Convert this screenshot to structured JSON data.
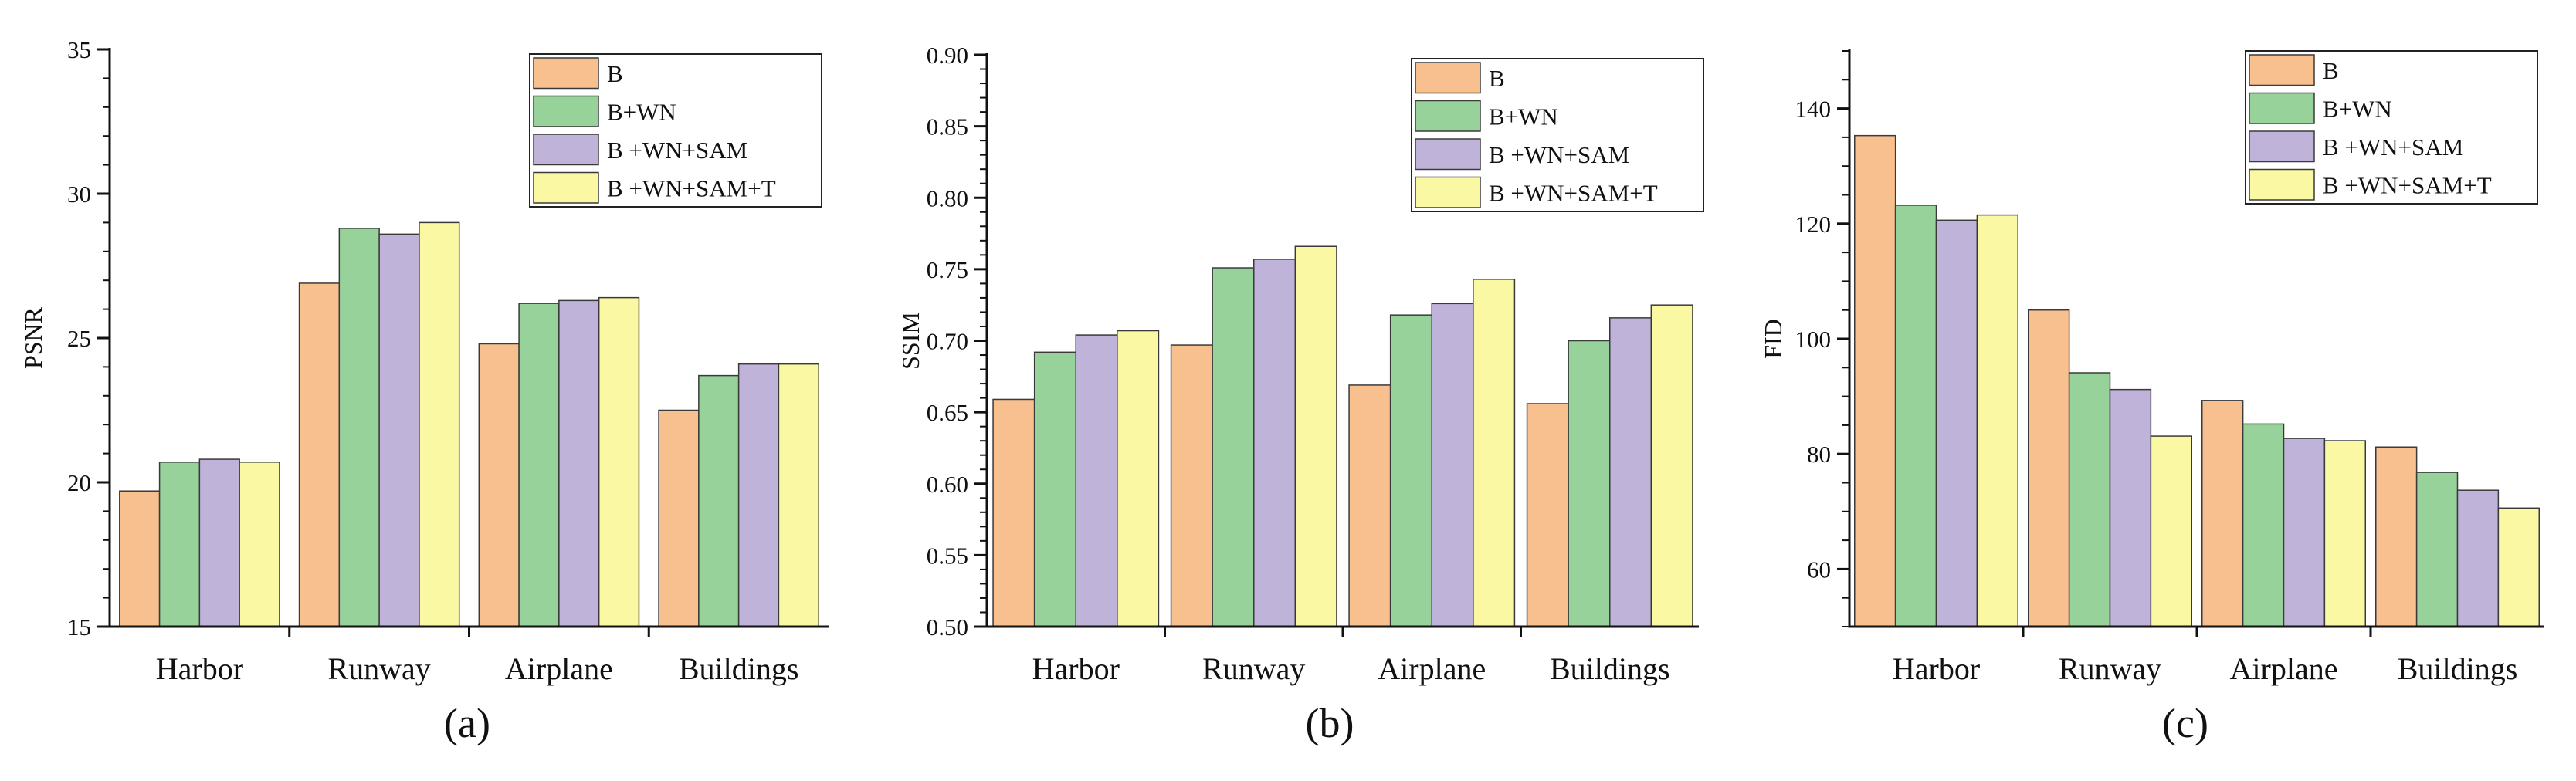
{
  "chart_data": [
    {
      "type": "bar",
      "panel_label": "(a)",
      "xlabel": "",
      "ylabel": "PSNR",
      "ylim": [
        15,
        35
      ],
      "yticks": [
        15,
        20,
        25,
        30,
        35
      ],
      "y_minor_step": 1,
      "tick_decimals": 0,
      "categories": [
        "Harbor",
        "Runway",
        "Airplane",
        "Buildings"
      ],
      "legend_position": "top-right",
      "series": [
        {
          "name": "B",
          "color": "#F9C08F",
          "values": [
            19.7,
            26.9,
            24.8,
            22.5
          ]
        },
        {
          "name": "B+WN",
          "color": "#98D29B",
          "values": [
            20.7,
            28.8,
            26.2,
            23.7
          ]
        },
        {
          "name": "B +WN+SAM",
          "color": "#BFB3DA",
          "values": [
            20.8,
            28.6,
            26.3,
            24.1
          ]
        },
        {
          "name": "B +WN+SAM+T",
          "color": "#FAF8A3",
          "values": [
            20.7,
            29.0,
            26.4,
            24.1
          ]
        }
      ]
    },
    {
      "type": "bar",
      "panel_label": "(b)",
      "xlabel": "",
      "ylabel": "SSIM",
      "ylim": [
        0.5,
        0.9
      ],
      "yticks": [
        0.5,
        0.55,
        0.6,
        0.65,
        0.7,
        0.75,
        0.8,
        0.85,
        0.9
      ],
      "y_minor_step": 0.01,
      "tick_decimals": 2,
      "categories": [
        "Harbor",
        "Runway",
        "Airplane",
        "Buildings"
      ],
      "legend_position": "top-right",
      "series": [
        {
          "name": "B",
          "color": "#F9C08F",
          "values": [
            0.659,
            0.697,
            0.669,
            0.656
          ]
        },
        {
          "name": "B+WN",
          "color": "#98D29B",
          "values": [
            0.692,
            0.751,
            0.718,
            0.7
          ]
        },
        {
          "name": "B +WN+SAM",
          "color": "#BFB3DA",
          "values": [
            0.704,
            0.757,
            0.726,
            0.716
          ]
        },
        {
          "name": "B +WN+SAM+T",
          "color": "#FAF8A3",
          "values": [
            0.707,
            0.766,
            0.743,
            0.725
          ]
        }
      ]
    },
    {
      "type": "bar",
      "panel_label": "(c)",
      "xlabel": "",
      "ylabel": "FID",
      "ylim": [
        50,
        150
      ],
      "yticks": [
        60,
        80,
        100,
        120,
        140
      ],
      "y_minor_step": 5,
      "tick_decimals": 0,
      "categories": [
        "Harbor",
        "Runway",
        "Airplane",
        "Buildings"
      ],
      "legend_position": "top-right",
      "series": [
        {
          "name": "B",
          "color": "#F9C08F",
          "values": [
            135.3,
            105.0,
            89.3,
            81.2
          ]
        },
        {
          "name": "B+WN",
          "color": "#98D29B",
          "values": [
            123.2,
            94.1,
            85.2,
            76.8
          ]
        },
        {
          "name": "B +WN+SAM",
          "color": "#BFB3DA",
          "values": [
            120.6,
            91.2,
            82.7,
            73.7
          ]
        },
        {
          "name": "B +WN+SAM+T",
          "color": "#FAF8A3",
          "values": [
            121.5,
            83.1,
            82.3,
            70.6
          ]
        }
      ]
    }
  ]
}
